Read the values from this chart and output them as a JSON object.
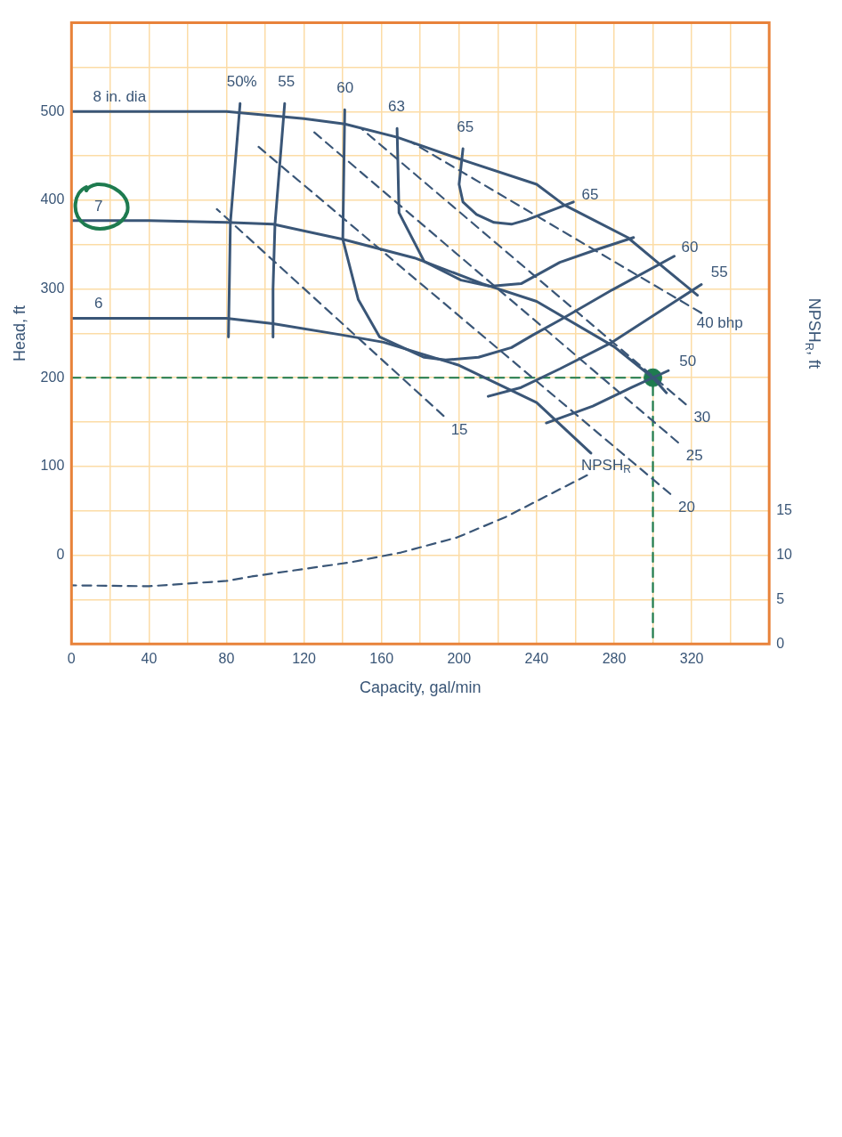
{
  "chart_data": {
    "type": "line",
    "xlabel": "Capacity, gal/min",
    "ylabel": "Head, ft",
    "y2label": "NPSH$_{R}$, ft",
    "xlim": [
      0,
      360
    ],
    "xticks": [
      0,
      {
        "value": 20,
        "label": null
      },
      40,
      {
        "value": 60,
        "label": null
      },
      80,
      {
        "value": 100,
        "label": null
      },
      120,
      {
        "value": 140,
        "label": null
      },
      160,
      {
        "value": 180,
        "label": null
      },
      200,
      {
        "value": 220,
        "label": null
      },
      240,
      {
        "value": 260,
        "label": null
      },
      280,
      {
        "value": 300,
        "label": null
      },
      320,
      {
        "value": 340,
        "label": null
      },
      {
        "value": 360,
        "label": null
      }
    ],
    "ylim": [
      -100,
      600
    ],
    "yticks": [
      {
        "value": -100,
        "label": null
      },
      {
        "value": -50,
        "label": null
      },
      0,
      {
        "value": 50,
        "label": null
      },
      100,
      {
        "value": 150,
        "label": null
      },
      200,
      {
        "value": 250,
        "label": null
      },
      300,
      {
        "value": 350,
        "label": null
      },
      400,
      {
        "value": 450,
        "label": null
      },
      500,
      {
        "value": 550,
        "label": null
      },
      {
        "value": 600,
        "label": null
      }
    ],
    "y2lim": [
      0,
      70
    ],
    "y2ticks": [
      0,
      5,
      10,
      15
    ],
    "grid": true,
    "marker": "none",
    "series": [
      {
        "name": "8 in. dia",
        "color": "#3a5677",
        "line_style": "solid",
        "x": [
          0,
          40,
          80,
          120,
          141,
          168,
          201,
          240,
          254,
          287,
          304,
          323
        ],
        "values": [
          500,
          500,
          500,
          492,
          486,
          471,
          446,
          418,
          395,
          358,
          327,
          293
        ]
      },
      {
        "name": "7",
        "color": "#3a5677",
        "line_style": "solid",
        "x": [
          0,
          40,
          80,
          104,
          140,
          177,
          212,
          240,
          280,
          300,
          307
        ],
        "values": [
          377,
          377,
          375,
          373,
          356,
          335,
          306,
          286,
          235,
          200,
          183
        ]
      },
      {
        "name": "6",
        "color": "#3a5677",
        "line_style": "solid",
        "x": [
          0,
          40,
          80,
          104,
          140,
          161,
          200,
          240,
          268
        ],
        "values": [
          267,
          267,
          267,
          261,
          248,
          240,
          214,
          172,
          115
        ]
      },
      {
        "name": "50%",
        "color": "#3a5677",
        "line_style": "solid",
        "x": [
          87,
          82,
          81
        ],
        "values": [
          509,
          375,
          246
        ]
      },
      {
        "name": "50",
        "color": "#3a5677",
        "line_style": "solid",
        "x": [
          308,
          289,
          269,
          245
        ],
        "values": [
          208,
          189,
          168,
          149
        ]
      },
      {
        "name": "55",
        "color": "#3a5677",
        "line_style": "solid",
        "x": [
          110,
          105,
          104,
          104
        ],
        "values": [
          509,
          373,
          300,
          246
        ]
      },
      {
        "name": "55",
        "color": "#3a5677",
        "line_style": "solid",
        "x": [
          325,
          303,
          279,
          252,
          232,
          215
        ],
        "values": [
          305,
          274,
          240,
          210,
          189,
          179
        ]
      },
      {
        "name": "60",
        "color": "#3a5677",
        "line_style": "solid",
        "x": [
          141,
          140,
          148,
          159,
          182,
          193,
          210,
          227,
          238,
          252,
          279,
          311
        ],
        "values": [
          502,
          356,
          288,
          246,
          223,
          220,
          223,
          234,
          248,
          265,
          299,
          337
        ]
      },
      {
        "name": "63",
        "color": "#3a5677",
        "line_style": "solid",
        "x": [
          168,
          169,
          182,
          201,
          216,
          232,
          252,
          269,
          290
        ],
        "values": [
          481,
          386,
          331,
          310,
          303,
          306,
          330,
          343,
          358
        ]
      },
      {
        "name": "65",
        "color": "#3a5677",
        "line_style": "solid",
        "x": [
          202,
          200,
          202,
          209,
          218,
          227,
          235,
          259
        ],
        "values": [
          458,
          418,
          398,
          384,
          375,
          373,
          378,
          398
        ]
      },
      {
        "name": "40 bhp",
        "color": "#3a5677",
        "line_style": "dashed",
        "x": [
          325,
          175
        ],
        "values": [
          273,
          466
        ]
      },
      {
        "name": "30",
        "color": "#3a5677",
        "line_style": "dashed",
        "x": [
          317,
          150
        ],
        "values": [
          170,
          480
        ]
      },
      {
        "name": "25",
        "color": "#3a5677",
        "line_style": "dashed",
        "x": [
          313,
          125
        ],
        "values": [
          127,
          477
        ]
      },
      {
        "name": "20",
        "color": "#3a5677",
        "line_style": "dashed",
        "x": [
          309,
          95
        ],
        "values": [
          69,
          463
        ]
      },
      {
        "name": "15",
        "color": "#3a5677",
        "line_style": "dashed",
        "x": [
          192,
          75
        ],
        "values": [
          157,
          390
        ]
      },
      {
        "name": "NPSH$_{R}$",
        "color": "#3a5677",
        "line_style": "dashed",
        "axis": "y2",
        "x": [
          266,
          224,
          199,
          170,
          144,
          93,
          80,
          40,
          0
        ],
        "values": [
          19.0,
          14.3,
          12.0,
          10.3,
          9.2,
          7.6,
          7.1,
          6.5,
          6.6
        ]
      },
      {
        "color": "#1e7b4f",
        "line_style": "dashed",
        "x": [
          0,
          300,
          300
        ],
        "values": [
          200,
          200,
          -100
        ]
      },
      {
        "type": "scatter",
        "color": "#1e7b4f",
        "marker": "circle",
        "x": [
          300
        ],
        "values": [
          200
        ]
      }
    ]
  }
}
